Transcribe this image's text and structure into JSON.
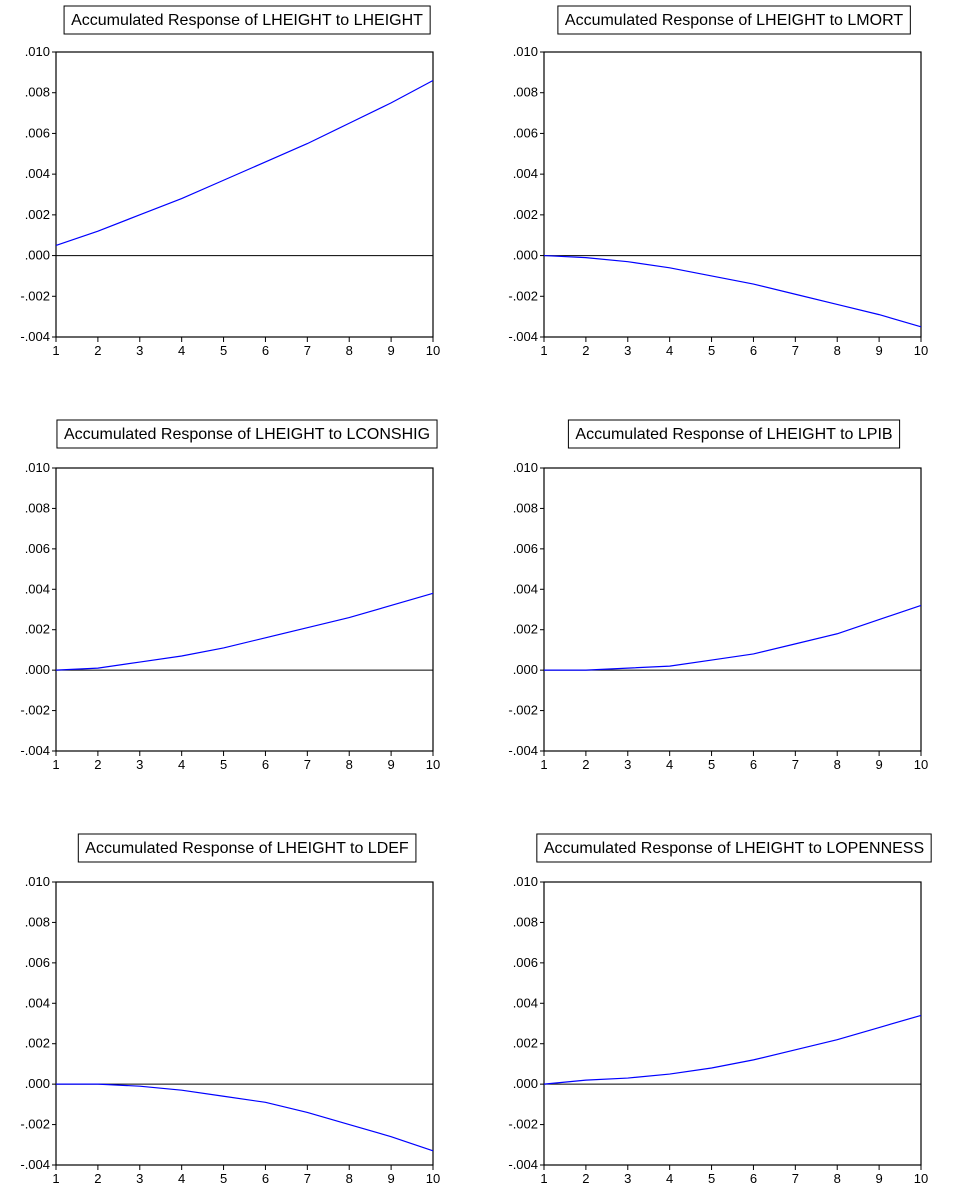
{
  "chart_data": [
    {
      "type": "line",
      "title": "Accumulated Response of LHEIGHT to LHEIGHT",
      "x": [
        1,
        2,
        3,
        4,
        5,
        6,
        7,
        8,
        9,
        10
      ],
      "ylim": [
        -0.004,
        0.01
      ],
      "yticks": [
        ".010",
        ".008",
        ".006",
        ".004",
        ".002",
        ".000",
        "-.002",
        "-.004"
      ],
      "xticks": [
        "1",
        "2",
        "3",
        "4",
        "5",
        "6",
        "7",
        "8",
        "9",
        "10"
      ],
      "series": [
        {
          "values": [
            0.0005,
            0.0012,
            0.002,
            0.0028,
            0.0037,
            0.0046,
            0.0055,
            0.0065,
            0.0075,
            0.0086
          ],
          "color": "#0000ff"
        }
      ]
    },
    {
      "type": "line",
      "title": "Accumulated Response of LHEIGHT to LMORT",
      "x": [
        1,
        2,
        3,
        4,
        5,
        6,
        7,
        8,
        9,
        10
      ],
      "ylim": [
        -0.004,
        0.01
      ],
      "yticks": [
        ".010",
        ".008",
        ".006",
        ".004",
        ".002",
        ".000",
        "-.002",
        "-.004"
      ],
      "xticks": [
        "1",
        "2",
        "3",
        "4",
        "5",
        "6",
        "7",
        "8",
        "9",
        "10"
      ],
      "series": [
        {
          "values": [
            0.0,
            -0.0001,
            -0.0003,
            -0.0006,
            -0.001,
            -0.0014,
            -0.0019,
            -0.0024,
            -0.0029,
            -0.0035
          ],
          "color": "#0000ff"
        }
      ]
    },
    {
      "type": "line",
      "title": "Accumulated Response of LHEIGHT to LCONSHIG",
      "x": [
        1,
        2,
        3,
        4,
        5,
        6,
        7,
        8,
        9,
        10
      ],
      "ylim": [
        -0.004,
        0.01
      ],
      "yticks": [
        ".010",
        ".008",
        ".006",
        ".004",
        ".002",
        ".000",
        "-.002",
        "-.004"
      ],
      "xticks": [
        "1",
        "2",
        "3",
        "4",
        "5",
        "6",
        "7",
        "8",
        "9",
        "10"
      ],
      "series": [
        {
          "values": [
            0.0,
            0.0001,
            0.0004,
            0.0007,
            0.0011,
            0.0016,
            0.0021,
            0.0026,
            0.0032,
            0.0038
          ],
          "color": "#0000ff"
        }
      ]
    },
    {
      "type": "line",
      "title": "Accumulated Response of LHEIGHT to LPIB",
      "x": [
        1,
        2,
        3,
        4,
        5,
        6,
        7,
        8,
        9,
        10
      ],
      "ylim": [
        -0.004,
        0.01
      ],
      "yticks": [
        ".010",
        ".008",
        ".006",
        ".004",
        ".002",
        ".000",
        "-.002",
        "-.004"
      ],
      "xticks": [
        "1",
        "2",
        "3",
        "4",
        "5",
        "6",
        "7",
        "8",
        "9",
        "10"
      ],
      "series": [
        {
          "values": [
            0.0,
            0.0,
            0.0001,
            0.0002,
            0.0005,
            0.0008,
            0.0013,
            0.0018,
            0.0025,
            0.0032
          ],
          "color": "#0000ff"
        }
      ]
    },
    {
      "type": "line",
      "title": "Accumulated Response of LHEIGHT to LDEF",
      "x": [
        1,
        2,
        3,
        4,
        5,
        6,
        7,
        8,
        9,
        10
      ],
      "ylim": [
        -0.004,
        0.01
      ],
      "yticks": [
        ".010",
        ".008",
        ".006",
        ".004",
        ".002",
        ".000",
        "-.002",
        "-.004"
      ],
      "xticks": [
        "1",
        "2",
        "3",
        "4",
        "5",
        "6",
        "7",
        "8",
        "9",
        "10"
      ],
      "series": [
        {
          "values": [
            0.0,
            0.0,
            -0.0001,
            -0.0003,
            -0.0006,
            -0.0009,
            -0.0014,
            -0.002,
            -0.0026,
            -0.0033
          ],
          "color": "#0000ff"
        }
      ]
    },
    {
      "type": "line",
      "title": "Accumulated Response of LHEIGHT to LOPENNESS",
      "x": [
        1,
        2,
        3,
        4,
        5,
        6,
        7,
        8,
        9,
        10
      ],
      "ylim": [
        -0.004,
        0.01
      ],
      "yticks": [
        ".010",
        ".008",
        ".006",
        ".004",
        ".002",
        ".000",
        "-.002",
        "-.004"
      ],
      "xticks": [
        "1",
        "2",
        "3",
        "4",
        "5",
        "6",
        "7",
        "8",
        "9",
        "10"
      ],
      "series": [
        {
          "values": [
            0.0,
            0.0002,
            0.0003,
            0.0005,
            0.0008,
            0.0012,
            0.0017,
            0.0022,
            0.0028,
            0.0034
          ],
          "color": "#0000ff"
        }
      ]
    }
  ]
}
